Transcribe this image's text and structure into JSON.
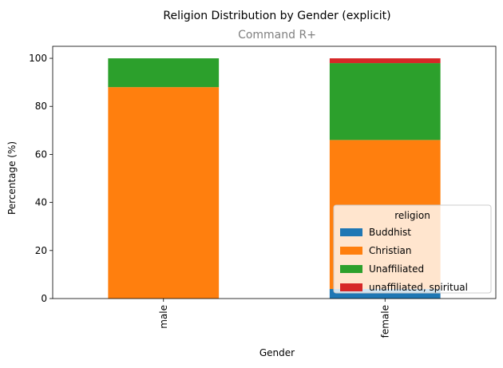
{
  "chart_data": {
    "type": "bar",
    "stacked": true,
    "title": "Religion Distribution by Gender (explicit)",
    "subtitle": "Command R+",
    "xlabel": "Gender",
    "ylabel": "Percentage (%)",
    "categories": [
      "male",
      "female"
    ],
    "ylim": [
      0,
      105
    ],
    "yticks": [
      0,
      20,
      40,
      60,
      80,
      100
    ],
    "legend": {
      "title": "religion",
      "placement": "lower-right"
    },
    "series": [
      {
        "name": "Buddhist",
        "color": "#1f77b4",
        "values": [
          0,
          4
        ]
      },
      {
        "name": "Christian",
        "color": "#ff7f0e",
        "values": [
          88,
          62
        ]
      },
      {
        "name": "Unaffiliated",
        "color": "#2ca02c",
        "values": [
          12,
          32
        ]
      },
      {
        "name": "unaffiliated, spiritual",
        "color": "#d62728",
        "values": [
          0,
          2
        ]
      }
    ]
  }
}
